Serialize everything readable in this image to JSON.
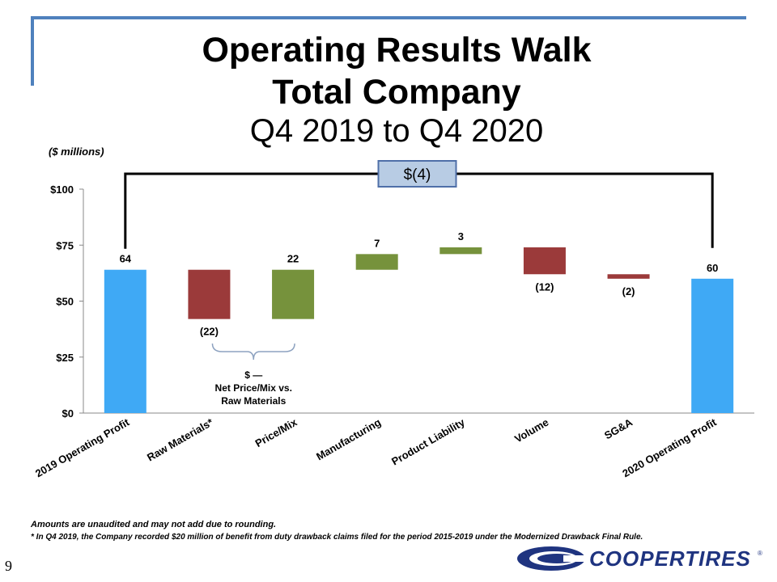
{
  "header": {
    "title_line1": "Operating Results Walk",
    "title_line2": "Total Company",
    "subtitle": "Q4 2019 to Q4 2020",
    "units": "($ millions)"
  },
  "colors": {
    "accent": "#4f81bd",
    "base": "#3fa9f5",
    "negative": "#9b3a3a",
    "positive": "#76923c",
    "logo": "#1f3480"
  },
  "chart_data": {
    "type": "bar",
    "subtype": "waterfall",
    "categories": [
      "2019 Operating Profit",
      "Raw Materials*",
      "Price/Mix",
      "Manufacturing",
      "Product Liability",
      "Volume",
      "SG&A",
      "2020 Operating Profit"
    ],
    "values": [
      64,
      -22,
      22,
      7,
      3,
      -12,
      -2,
      60
    ],
    "kinds": [
      "total",
      "delta",
      "delta",
      "delta",
      "delta",
      "delta",
      "delta",
      "total"
    ],
    "data_labels": [
      "64",
      "(22)",
      "22",
      "7",
      "3",
      "(12)",
      "(2)",
      "60"
    ],
    "ylim": [
      0,
      100
    ],
    "yticks": [
      0,
      25,
      50,
      75,
      100
    ],
    "ytick_labels": [
      "$0",
      "$25",
      "$50",
      "$75",
      "$100"
    ],
    "total_change_label": "$(4)",
    "brace_annotation": [
      "$ —",
      "Net Price/Mix vs.",
      "Raw Materials"
    ]
  },
  "footnotes": {
    "note1": "Amounts are unaudited and may not add due to rounding.",
    "note2": "* In Q4 2019, the Company recorded $20 million of benefit from duty drawback claims filed for the period 2015-2019 under the Modernized Drawback Final Rule."
  },
  "page_number": "9",
  "logo_text": "COOPERTIRES",
  "logo_tm": "®"
}
